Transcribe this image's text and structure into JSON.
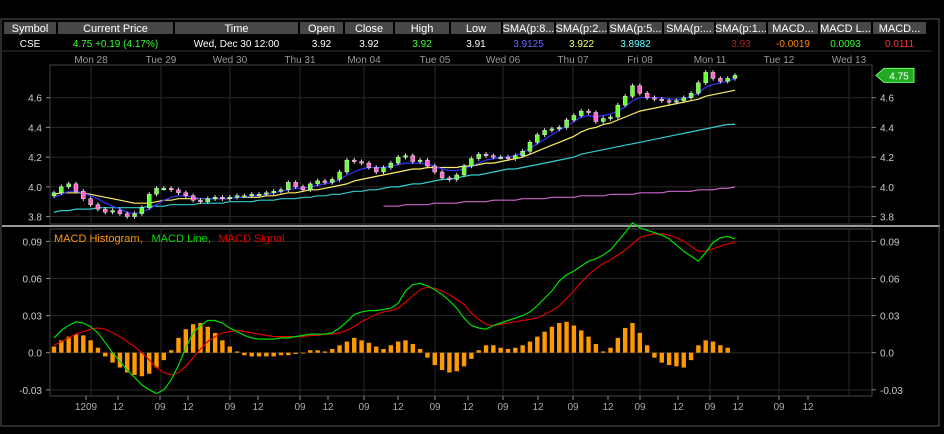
{
  "quote_header": {
    "columns": [
      "Symbol",
      "Current Price",
      "Time",
      "Open",
      "Close",
      "High",
      "Low",
      "SMA(p:8...",
      "SMA(p:2...",
      "SMA(p:5...",
      "SMA(p:...",
      "SMA(p:1...",
      "MACD...",
      "MACD L...",
      "MACD..."
    ],
    "row": [
      {
        "text": "CSE",
        "color": "#ffffff"
      },
      {
        "text": "4.75  +0.19 (4.17%)",
        "color": "#33ff33"
      },
      {
        "text": "Wed, Dec 30  12:00",
        "color": "#ffffff"
      },
      {
        "text": "3.92",
        "color": "#ffffff"
      },
      {
        "text": "3.92",
        "color": "#ffffff"
      },
      {
        "text": "3.92",
        "color": "#33ff33"
      },
      {
        "text": "3.91",
        "color": "#ffffff"
      },
      {
        "text": "3.9125",
        "color": "#6666ff"
      },
      {
        "text": "3.922",
        "color": "#ffff66"
      },
      {
        "text": "3.8982",
        "color": "#66ffff"
      },
      {
        "text": "",
        "color": "#ffffff"
      },
      {
        "text": "3.93",
        "color": "#aa2222"
      },
      {
        "text": "-0.0019",
        "color": "#ff8800"
      },
      {
        "text": "0.0093",
        "color": "#33ff33"
      },
      {
        "text": "0.0111",
        "color": "#ff3333"
      }
    ]
  },
  "colors": {
    "background": "#000000",
    "up_candle": "#66ff33",
    "down_candle": "#ff66cc",
    "sma_fast": "#3333ff",
    "sma_mid": "#ffee66",
    "sma_slow": "#33cccc",
    "sma_long": "#cc66cc",
    "histogram": "#ff9900",
    "macd_line": "#00dd00",
    "macd_signal": "#dd0000",
    "grid": "#2a2a2a"
  },
  "chart_data": [
    {
      "type": "candlestick",
      "symbol": "CSE",
      "date_labels": [
        "Mon 28",
        "Tue 29",
        "Wed 30",
        "Thu 31",
        "Mon 04",
        "Tue 05",
        "Wed 06",
        "Thu 07",
        "Fri 08",
        "Mon 11",
        "Tue 12",
        "Wed 13"
      ],
      "ylim": [
        3.75,
        4.82
      ],
      "y_ticks": [
        3.8,
        4.0,
        4.2,
        4.4,
        4.6
      ],
      "y_tick_labels": [
        "3.8",
        "4.0",
        "4.2",
        "4.4",
        "4.6"
      ],
      "last_price_label": "4.75",
      "close": [
        3.96,
        4.0,
        4.02,
        3.97,
        3.92,
        3.88,
        3.85,
        3.83,
        3.84,
        3.82,
        3.8,
        3.82,
        3.86,
        3.95,
        3.99,
        3.99,
        3.98,
        3.96,
        3.94,
        3.91,
        3.9,
        3.92,
        3.93,
        3.92,
        3.93,
        3.94,
        3.94,
        3.95,
        3.95,
        3.96,
        3.97,
        3.98,
        4.03,
        4.0,
        3.98,
        4.02,
        4.04,
        4.03,
        4.05,
        4.1,
        4.18,
        4.17,
        4.16,
        4.13,
        4.1,
        4.13,
        4.16,
        4.2,
        4.21,
        4.17,
        4.18,
        4.14,
        4.1,
        4.06,
        4.05,
        4.08,
        4.14,
        4.19,
        4.22,
        4.21,
        4.2,
        4.2,
        4.19,
        4.21,
        4.24,
        4.3,
        4.35,
        4.38,
        4.39,
        4.4,
        4.45,
        4.48,
        4.51,
        4.5,
        4.44,
        4.46,
        4.47,
        4.55,
        4.61,
        4.68,
        4.63,
        4.6,
        4.59,
        4.58,
        4.57,
        4.58,
        4.6,
        4.63,
        4.7,
        4.77,
        4.73,
        4.71,
        4.73,
        4.75
      ],
      "sma_fast": [
        3.93,
        3.95,
        3.97,
        3.97,
        3.96,
        3.94,
        3.92,
        3.89,
        3.87,
        3.85,
        3.83,
        3.82,
        3.83,
        3.85,
        3.88,
        3.91,
        3.93,
        3.94,
        3.94,
        3.93,
        3.92,
        3.92,
        3.92,
        3.92,
        3.92,
        3.93,
        3.93,
        3.94,
        3.94,
        3.95,
        3.96,
        3.97,
        3.98,
        3.99,
        3.99,
        4.0,
        4.01,
        4.02,
        4.03,
        4.05,
        4.08,
        4.1,
        4.12,
        4.13,
        4.13,
        4.13,
        4.14,
        4.15,
        4.16,
        4.16,
        4.16,
        4.15,
        4.14,
        4.12,
        4.11,
        4.11,
        4.12,
        4.14,
        4.16,
        4.18,
        4.19,
        4.2,
        4.2,
        4.21,
        4.23,
        4.26,
        4.29,
        4.32,
        4.35,
        4.38,
        4.41,
        4.44,
        4.47,
        4.48,
        4.47,
        4.48,
        4.49,
        4.51,
        4.54,
        4.58,
        4.6,
        4.6,
        4.6,
        4.6,
        4.59,
        4.59,
        4.59,
        4.61,
        4.63,
        4.67,
        4.69,
        4.7,
        4.71,
        4.73
      ],
      "sma_mid": [
        3.95,
        3.96,
        3.96,
        3.96,
        3.96,
        3.95,
        3.94,
        3.93,
        3.92,
        3.91,
        3.9,
        3.89,
        3.89,
        3.89,
        3.9,
        3.91,
        3.91,
        3.92,
        3.92,
        3.92,
        3.92,
        3.92,
        3.92,
        3.92,
        3.92,
        3.93,
        3.93,
        3.93,
        3.93,
        3.94,
        3.94,
        3.95,
        3.96,
        3.96,
        3.97,
        3.98,
        3.98,
        3.99,
        4.0,
        4.01,
        4.02,
        4.04,
        4.05,
        4.06,
        4.07,
        4.08,
        4.09,
        4.1,
        4.11,
        4.12,
        4.12,
        4.13,
        4.13,
        4.13,
        4.13,
        4.13,
        4.14,
        4.14,
        4.15,
        4.16,
        4.16,
        4.17,
        4.18,
        4.19,
        4.2,
        4.22,
        4.24,
        4.26,
        4.28,
        4.3,
        4.32,
        4.34,
        4.37,
        4.39,
        4.4,
        4.42,
        4.43,
        4.45,
        4.47,
        4.49,
        4.51,
        4.52,
        4.53,
        4.54,
        4.55,
        4.56,
        4.57,
        4.58,
        4.59,
        4.61,
        4.62,
        4.63,
        4.64,
        4.65
      ],
      "sma_slow": [
        3.83,
        3.84,
        3.84,
        3.85,
        3.85,
        3.85,
        3.86,
        3.86,
        3.86,
        3.86,
        3.86,
        3.86,
        3.86,
        3.87,
        3.87,
        3.87,
        3.88,
        3.88,
        3.88,
        3.88,
        3.89,
        3.89,
        3.89,
        3.89,
        3.9,
        3.9,
        3.9,
        3.9,
        3.91,
        3.91,
        3.91,
        3.92,
        3.92,
        3.92,
        3.93,
        3.93,
        3.94,
        3.94,
        3.95,
        3.95,
        3.96,
        3.97,
        3.97,
        3.98,
        3.98,
        3.99,
        4.0,
        4.0,
        4.01,
        4.02,
        4.02,
        4.03,
        4.04,
        4.05,
        4.05,
        4.06,
        4.07,
        4.08,
        4.08,
        4.09,
        4.1,
        4.11,
        4.12,
        4.12,
        4.13,
        4.14,
        4.15,
        4.16,
        4.17,
        4.18,
        4.19,
        4.2,
        4.22,
        4.23,
        4.24,
        4.25,
        4.26,
        4.27,
        4.28,
        4.29,
        4.3,
        4.31,
        4.32,
        4.33,
        4.34,
        4.35,
        4.36,
        4.37,
        4.38,
        4.39,
        4.4,
        4.41,
        4.42,
        4.42
      ],
      "sma_long": {
        "start_index": 45,
        "values": [
          3.87,
          3.87,
          3.87,
          3.88,
          3.88,
          3.88,
          3.88,
          3.89,
          3.89,
          3.89,
          3.89,
          3.9,
          3.9,
          3.9,
          3.9,
          3.91,
          3.91,
          3.91,
          3.91,
          3.92,
          3.92,
          3.92,
          3.92,
          3.93,
          3.93,
          3.93,
          3.93,
          3.94,
          3.94,
          3.94,
          3.94,
          3.95,
          3.95,
          3.95,
          3.95,
          3.96,
          3.96,
          3.96,
          3.96,
          3.97,
          3.97,
          3.97,
          3.97,
          3.98,
          3.98,
          3.98,
          3.99,
          3.99,
          4.0
        ]
      }
    },
    {
      "type": "line",
      "legend": [
        {
          "label": "MACD Histogram,",
          "color": "#ff9900"
        },
        {
          "label": "MACD Line,",
          "color": "#00dd00"
        },
        {
          "label": "MACD Signal",
          "color": "#dd0000"
        }
      ],
      "ylim": [
        -0.035,
        0.1
      ],
      "y_ticks": [
        -0.03,
        0.0,
        0.03,
        0.06,
        0.09
      ],
      "y_tick_labels": [
        "-0.03",
        "0.0",
        "0.03",
        "0.06",
        "0.09"
      ],
      "x_tick_labels": [
        "1209",
        "12",
        "09",
        "12",
        "09",
        "12",
        "09",
        "12",
        "09",
        "12",
        "09",
        "12",
        "09",
        "12",
        "09",
        "12",
        "09",
        "12",
        "09",
        "12",
        "09",
        "12"
      ],
      "histogram": [
        0.005,
        0.01,
        0.013,
        0.015,
        0.014,
        0.01,
        0.004,
        -0.003,
        -0.008,
        -0.012,
        -0.016,
        -0.018,
        -0.019,
        -0.017,
        -0.012,
        -0.006,
        0.002,
        0.012,
        0.019,
        0.023,
        0.024,
        0.021,
        0.016,
        0.01,
        0.005,
        0.001,
        -0.002,
        -0.003,
        -0.003,
        -0.003,
        -0.003,
        -0.002,
        -0.002,
        -0.001,
        0.0,
        0.002,
        0.002,
        0.001,
        0.003,
        0.006,
        0.009,
        0.012,
        0.01,
        0.008,
        0.005,
        0.003,
        0.006,
        0.009,
        0.01,
        0.007,
        0.003,
        -0.004,
        -0.01,
        -0.014,
        -0.016,
        -0.015,
        -0.011,
        -0.005,
        0.002,
        0.006,
        0.006,
        0.004,
        0.003,
        0.004,
        0.006,
        0.009,
        0.013,
        0.017,
        0.021,
        0.024,
        0.025,
        0.022,
        0.018,
        0.013,
        0.007,
        0.001,
        0.004,
        0.012,
        0.02,
        0.024,
        0.016,
        0.006,
        -0.004,
        -0.008,
        -0.01,
        -0.011,
        -0.012,
        -0.006,
        0.006,
        0.01,
        0.009,
        0.006,
        0.004
      ],
      "macd_line": [
        0.012,
        0.018,
        0.022,
        0.025,
        0.024,
        0.021,
        0.016,
        0.008,
        0.0,
        -0.007,
        -0.014,
        -0.02,
        -0.026,
        -0.03,
        -0.033,
        -0.03,
        -0.022,
        -0.01,
        0.004,
        0.016,
        0.022,
        0.026,
        0.026,
        0.024,
        0.02,
        0.017,
        0.014,
        0.012,
        0.011,
        0.011,
        0.011,
        0.012,
        0.012,
        0.013,
        0.014,
        0.015,
        0.015,
        0.015,
        0.016,
        0.02,
        0.025,
        0.031,
        0.033,
        0.034,
        0.034,
        0.035,
        0.036,
        0.04,
        0.05,
        0.055,
        0.056,
        0.054,
        0.051,
        0.047,
        0.042,
        0.036,
        0.028,
        0.022,
        0.02,
        0.019,
        0.022,
        0.024,
        0.026,
        0.028,
        0.03,
        0.033,
        0.038,
        0.044,
        0.05,
        0.058,
        0.063,
        0.066,
        0.07,
        0.074,
        0.076,
        0.079,
        0.083,
        0.09,
        0.097,
        0.105,
        0.101,
        0.099,
        0.097,
        0.095,
        0.092,
        0.087,
        0.082,
        0.078,
        0.074,
        0.081,
        0.089,
        0.093,
        0.094,
        0.092
      ],
      "macd_signal": [
        0.006,
        0.009,
        0.012,
        0.015,
        0.017,
        0.019,
        0.02,
        0.019,
        0.016,
        0.013,
        0.009,
        0.005,
        0.0,
        -0.006,
        -0.012,
        -0.016,
        -0.018,
        -0.016,
        -0.011,
        -0.004,
        0.003,
        0.009,
        0.013,
        0.016,
        0.017,
        0.018,
        0.017,
        0.016,
        0.015,
        0.014,
        0.013,
        0.013,
        0.013,
        0.013,
        0.013,
        0.014,
        0.014,
        0.015,
        0.015,
        0.016,
        0.018,
        0.021,
        0.025,
        0.028,
        0.031,
        0.033,
        0.034,
        0.036,
        0.041,
        0.046,
        0.051,
        0.053,
        0.052,
        0.05,
        0.047,
        0.043,
        0.039,
        0.032,
        0.027,
        0.023,
        0.022,
        0.023,
        0.024,
        0.025,
        0.026,
        0.027,
        0.028,
        0.031,
        0.034,
        0.038,
        0.044,
        0.05,
        0.057,
        0.063,
        0.068,
        0.072,
        0.075,
        0.079,
        0.083,
        0.088,
        0.093,
        0.095,
        0.096,
        0.096,
        0.095,
        0.093,
        0.09,
        0.086,
        0.082,
        0.082,
        0.084,
        0.086,
        0.088,
        0.089
      ]
    }
  ]
}
